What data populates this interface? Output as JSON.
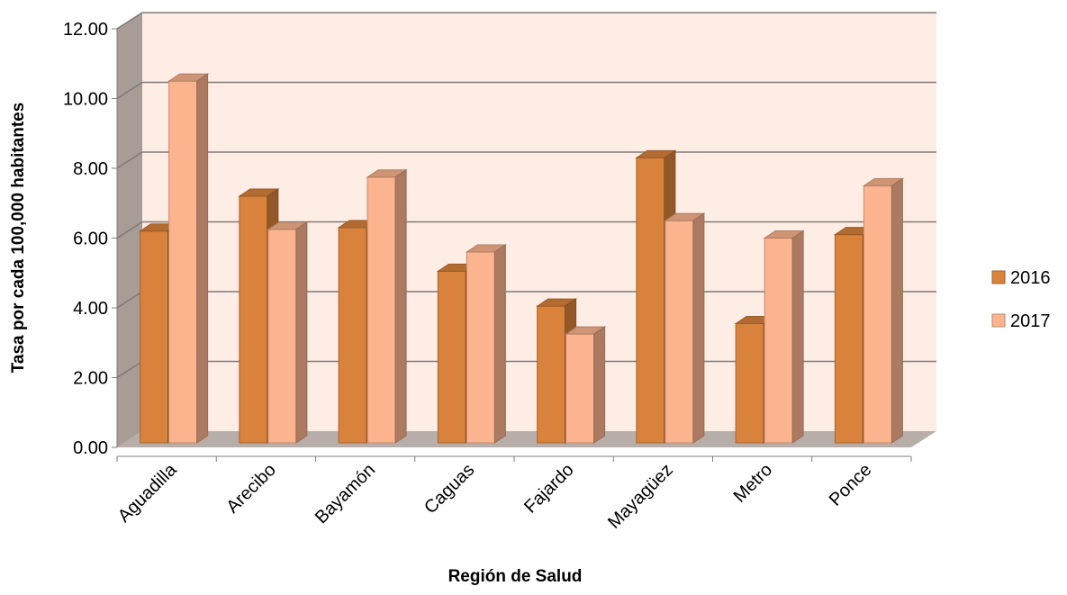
{
  "chart_data": {
    "type": "bar",
    "style": "3d-clustered-column",
    "categories": [
      "Aguadilla",
      "Arecibo",
      "Bayamón",
      "Caguas",
      "Fajardo",
      "Mayagüez",
      "Metro",
      "Ponce"
    ],
    "series": [
      {
        "name": "2016",
        "values": [
          6.2,
          7.2,
          6.3,
          5.05,
          4.05,
          8.3,
          3.55,
          6.1
        ],
        "color": "#D9823B"
      },
      {
        "name": "2017",
        "values": [
          10.5,
          6.25,
          7.75,
          5.6,
          3.25,
          6.5,
          6.0,
          7.5
        ],
        "color": "#FBB48E"
      }
    ],
    "y_ticks": [
      "0.00",
      "2.00",
      "4.00",
      "6.00",
      "8.00",
      "10.00",
      "12.00"
    ],
    "ylim": [
      0,
      12
    ],
    "xlabel": "Región de Salud",
    "ylabel": "Tasa por cada 100,000 habitantes",
    "legend_position": "right",
    "grid": true,
    "colors": {
      "back_wall": "#FDEDE5",
      "side_wall": "#A89C97",
      "floor": "#B8AEA9",
      "gridline": "#807A77"
    }
  }
}
